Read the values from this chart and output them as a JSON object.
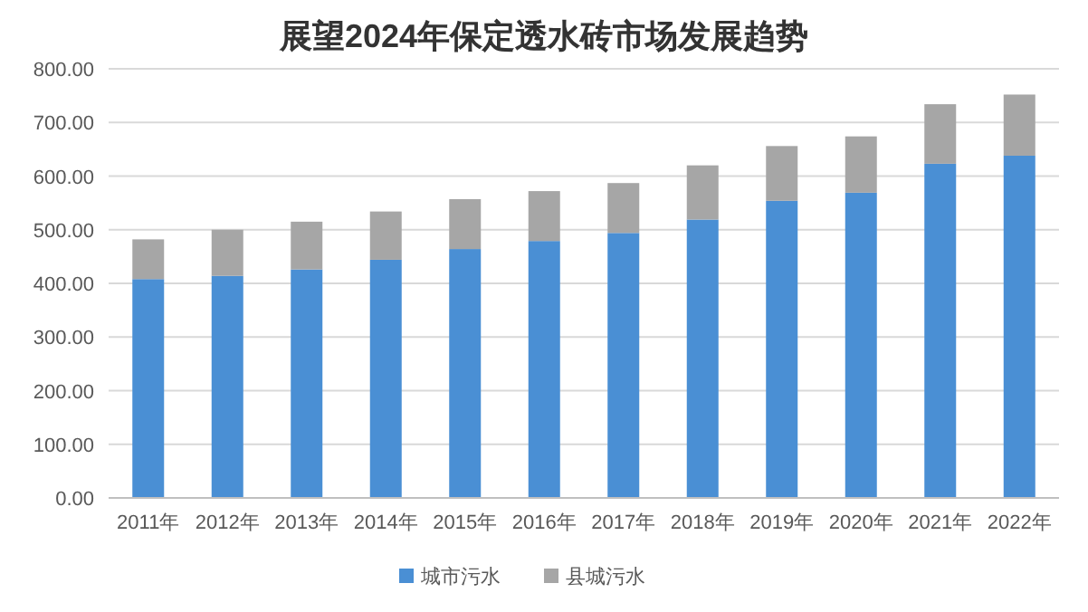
{
  "chart_data": {
    "type": "bar",
    "title": "展望2024年保定透水砖市场发展趋势",
    "categories": [
      "2011年",
      "2012年",
      "2013年",
      "2014年",
      "2015年",
      "2016年",
      "2017年",
      "2018年",
      "2019年",
      "2020年",
      "2021年",
      "2022年"
    ],
    "stacked": true,
    "series": [
      {
        "name": "城市污水",
        "color": "#4a8fd4",
        "values": [
          408,
          414,
          426,
          444,
          464,
          479,
          494,
          519,
          554,
          569,
          623,
          638
        ]
      },
      {
        "name": "县城污水",
        "color": "#a6a6a6",
        "values": [
          74,
          86,
          89,
          90,
          93,
          93,
          93,
          101,
          102,
          105,
          111,
          114
        ]
      }
    ],
    "ylim": [
      0,
      800
    ],
    "yticks": [
      {
        "value": 0,
        "label": "0.00"
      },
      {
        "value": 100,
        "label": "100.00"
      },
      {
        "value": 200,
        "label": "200.00"
      },
      {
        "value": 300,
        "label": "300.00"
      },
      {
        "value": 400,
        "label": "400.00"
      },
      {
        "value": 500,
        "label": "500.00"
      },
      {
        "value": 600,
        "label": "600.00"
      },
      {
        "value": 700,
        "label": "700.00"
      },
      {
        "value": 800,
        "label": "800.00"
      }
    ],
    "grid": "y",
    "legend": "bottom"
  }
}
